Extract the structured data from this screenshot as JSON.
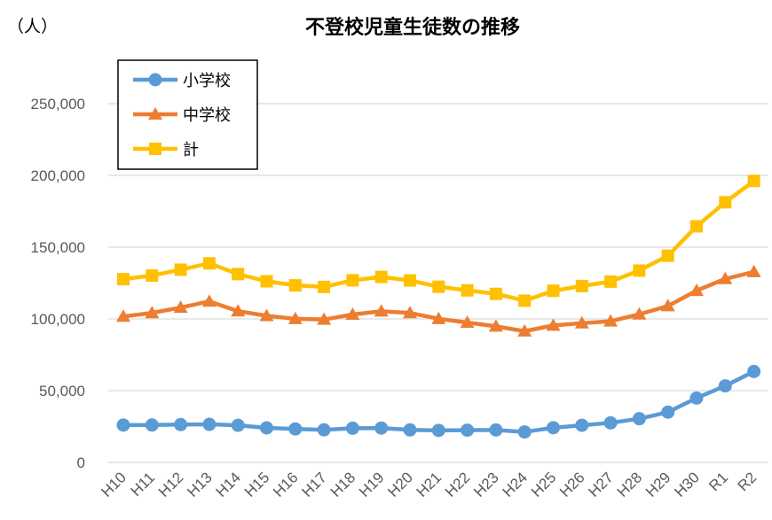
{
  "chart_data": {
    "type": "line",
    "title": "不登校児童生徒数の推移",
    "unit_label": "（人）",
    "categories": [
      "H10",
      "H11",
      "H12",
      "H13",
      "H14",
      "H15",
      "H16",
      "H17",
      "H18",
      "H19",
      "H20",
      "H21",
      "H22",
      "H23",
      "H24",
      "H25",
      "H26",
      "H27",
      "H28",
      "H29",
      "H30",
      "R1",
      "R2"
    ],
    "yticks": [
      "0",
      "50,000",
      "100,000",
      "150,000",
      "200,000",
      "250,000"
    ],
    "ylim": [
      0,
      250000
    ],
    "grid": true,
    "legend_position": "top-left",
    "series": [
      {
        "name": "小学校",
        "color": "#5B9BD5",
        "marker": "circle",
        "values": [
          26017,
          26047,
          26373,
          26511,
          25869,
          24077,
          23318,
          22709,
          23825,
          23927,
          22652,
          22327,
          22463,
          22622,
          21243,
          24175,
          25864,
          27583,
          30448,
          35032,
          44841,
          53350,
          63350
        ]
      },
      {
        "name": "中学校",
        "color": "#ED7D31",
        "marker": "triangle",
        "values": [
          101675,
          104180,
          107913,
          112211,
          105383,
          102149,
          100040,
          99578,
          103069,
          105328,
          104153,
          100105,
          97428,
          94836,
          91446,
          95442,
          97033,
          98408,
          103235,
          108999,
          119687,
          127922,
          132777
        ]
      },
      {
        "name": "計",
        "color": "#FFC000",
        "marker": "square",
        "values": [
          127692,
          130227,
          134286,
          138722,
          131252,
          126226,
          123358,
          122287,
          126894,
          129255,
          126805,
          122432,
          119891,
          117458,
          112689,
          119617,
          122897,
          125991,
          133683,
          144031,
          164528,
          181272,
          196127
        ]
      }
    ]
  }
}
